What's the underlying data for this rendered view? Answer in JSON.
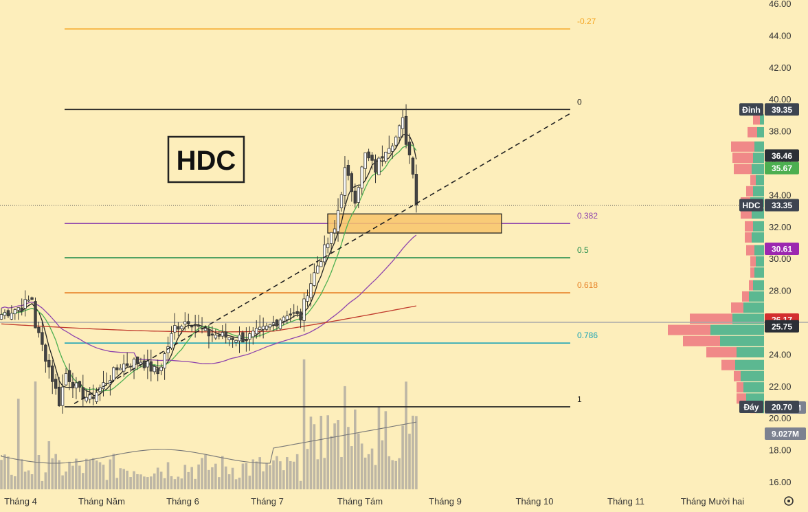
{
  "chart_data": {
    "type": "candlestick",
    "symbol": "HDC",
    "ylim": [
      15.2,
      46.2
    ],
    "y_ticks": [
      "16.00",
      "18.00",
      "20.00",
      "22.00",
      "24.00",
      "26.00",
      "28.00",
      "30.00",
      "32.00",
      "34.00",
      "36.00",
      "38.00",
      "40.00",
      "42.00",
      "44.00",
      "46.00"
    ],
    "x_labels": [
      "Tháng 4",
      "Tháng Năm",
      "Tháng 6",
      "Tháng 7",
      "Tháng Tám",
      "Tháng 9",
      "Tháng 10",
      "Tháng 11",
      "Tháng Mười hai"
    ],
    "fibonacci": {
      "low": 20.7,
      "high": 39.35,
      "levels": [
        {
          "label": "-0.27",
          "value": 44.4,
          "color": "#f5a623"
        },
        {
          "label": "0",
          "value": 39.35,
          "color": "#222222"
        },
        {
          "label": "0.382",
          "value": 32.2,
          "color": "#8e44ad"
        },
        {
          "label": "0.5",
          "value": 30.05,
          "color": "#1e8a4a"
        },
        {
          "label": "0.618",
          "value": 27.85,
          "color": "#e67e22"
        },
        {
          "label": "0.786",
          "value": 24.7,
          "color": "#1aa3b5"
        },
        {
          "label": "1",
          "value": 20.7,
          "color": "#222222"
        }
      ]
    },
    "price_badges": [
      {
        "label": "Đỉnh",
        "value": "39.35",
        "color": "#3d4450"
      },
      {
        "label": "",
        "value": "36.46",
        "color": "#2b2f36"
      },
      {
        "label": "",
        "value": "35.67",
        "color": "#4caf50"
      },
      {
        "label": "HDC",
        "value": "33.35",
        "color": "#3d4450"
      },
      {
        "label": "",
        "value": "30.61",
        "color": "#9c27b0"
      },
      {
        "label": "",
        "value": "26.17",
        "color": "#d32f2f"
      },
      {
        "label": "",
        "value": "25.75",
        "color": "#2b2f36"
      },
      {
        "label": "",
        "value": "11.483M",
        "color": "#7c8190"
      },
      {
        "label": "Đáy",
        "value": "20.70",
        "color": "#3d4450"
      },
      {
        "label": "",
        "value": "9.027M",
        "color": "#7c8190"
      }
    ],
    "current_price": 33.35,
    "support_zone": [
      31.6,
      32.8
    ],
    "horizontal_line": 26.0,
    "volume_profile": [
      {
        "price": 38.7,
        "up": 6,
        "down": 10
      },
      {
        "price": 37.9,
        "up": 10,
        "down": 14
      },
      {
        "price": 37.0,
        "up": 14,
        "down": 34
      },
      {
        "price": 36.3,
        "up": 16,
        "down": 30
      },
      {
        "price": 35.6,
        "up": 18,
        "down": 26
      },
      {
        "price": 34.9,
        "up": 12,
        "down": 8
      },
      {
        "price": 34.2,
        "up": 16,
        "down": 10
      },
      {
        "price": 33.5,
        "up": 20,
        "down": 14
      },
      {
        "price": 32.8,
        "up": 18,
        "down": 16
      },
      {
        "price": 32.0,
        "up": 16,
        "down": 12
      },
      {
        "price": 31.3,
        "up": 18,
        "down": 10
      },
      {
        "price": 30.5,
        "up": 14,
        "down": 12
      },
      {
        "price": 29.8,
        "up": 12,
        "down": 8
      },
      {
        "price": 29.1,
        "up": 14,
        "down": 6
      },
      {
        "price": 28.3,
        "up": 16,
        "down": 6
      },
      {
        "price": 27.6,
        "up": 22,
        "down": 10
      },
      {
        "price": 26.9,
        "up": 30,
        "down": 18
      },
      {
        "price": 26.2,
        "up": 46,
        "down": 62
      },
      {
        "price": 25.5,
        "up": 78,
        "down": 62
      },
      {
        "price": 24.8,
        "up": 64,
        "down": 54
      },
      {
        "price": 24.1,
        "up": 40,
        "down": 44
      },
      {
        "price": 23.3,
        "up": 42,
        "down": 20
      },
      {
        "price": 22.6,
        "up": 34,
        "down": 10
      },
      {
        "price": 21.9,
        "up": 30,
        "down": 10
      },
      {
        "price": 21.2,
        "up": 26,
        "down": 14
      },
      {
        "price": 20.6,
        "up": 12,
        "down": 8
      }
    ]
  }
}
